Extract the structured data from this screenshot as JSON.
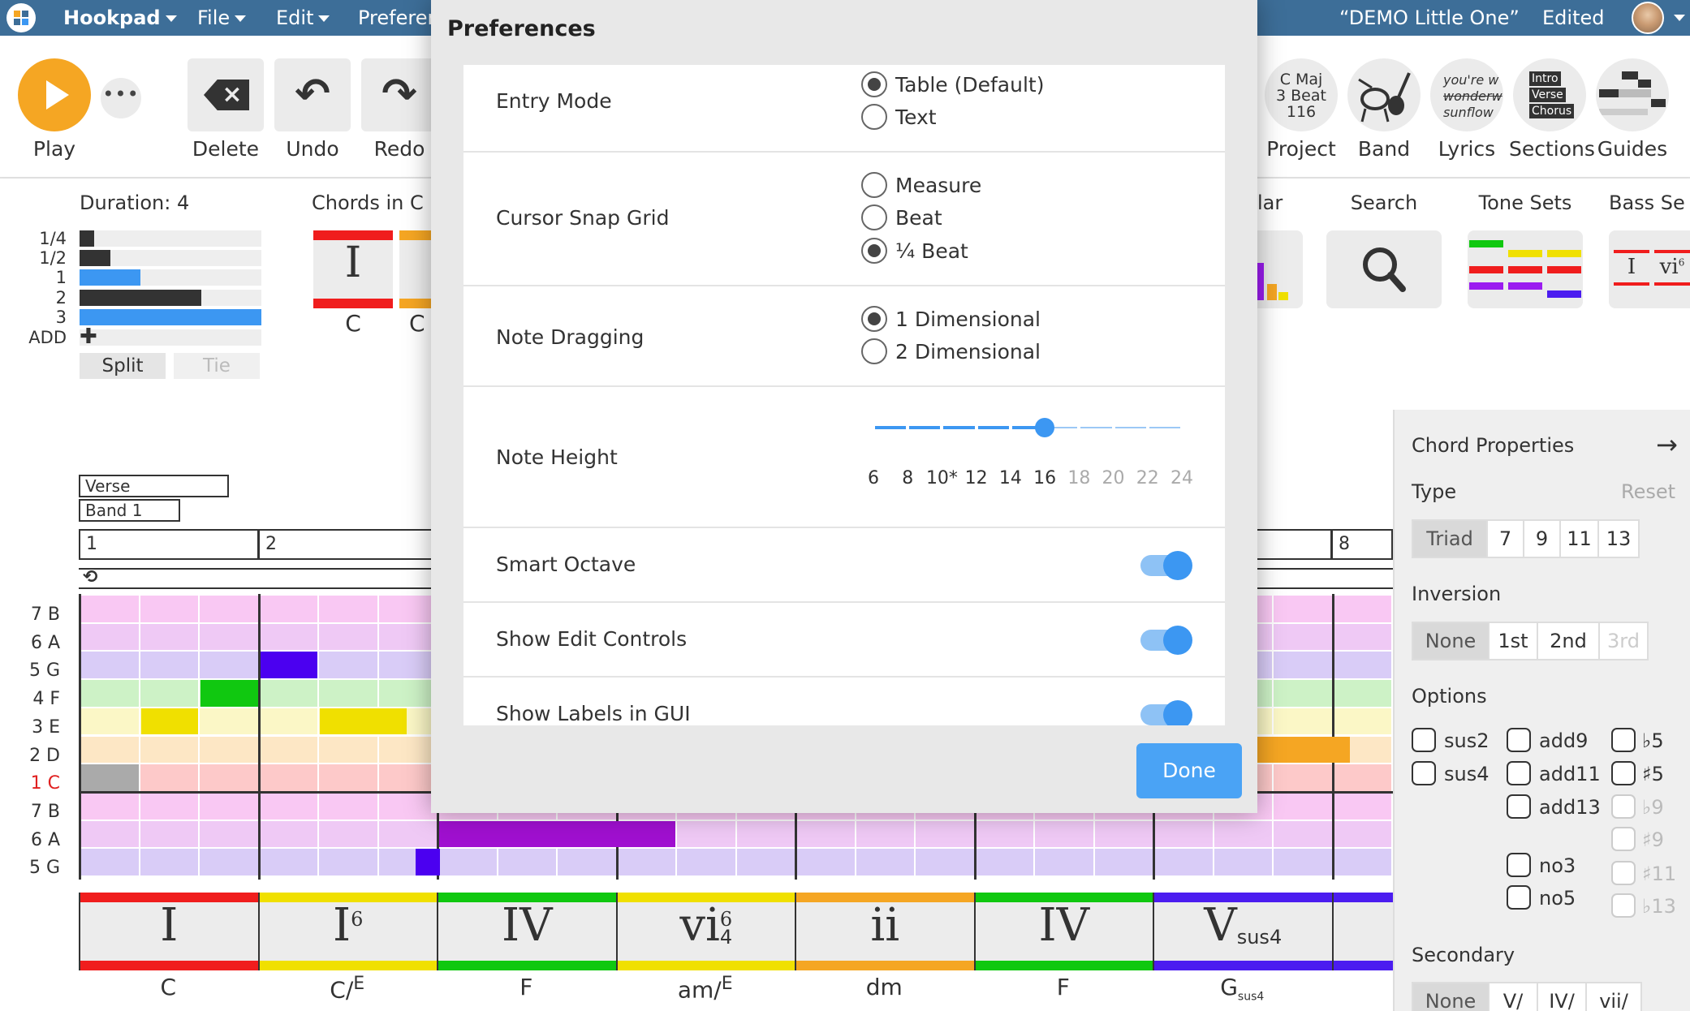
{
  "topbar": {
    "app_name": "Hookpad",
    "menu_file": "File",
    "menu_edit": "Edit",
    "menu_prefs": "Preferences",
    "doc_title": "“DEMO Little One”",
    "status": "Edited"
  },
  "toolbar": {
    "play": "Play",
    "delete": "Delete",
    "undo": "Undo",
    "redo": "Redo",
    "project": "Project",
    "band": "Band",
    "lyrics": "Lyrics",
    "sections": "Sections",
    "guides": "Guides",
    "project_key": "C Maj",
    "project_meter": "3 Beat",
    "project_tempo": "116",
    "lyrics_line1": "you're w",
    "lyrics_line2": "wonderw",
    "lyrics_line3": "sunflow",
    "sections_line1": "Intro",
    "sections_line2": "Verse",
    "sections_line3": "Chorus"
  },
  "widgets": {
    "duration_title": "Duration: 4",
    "durations": [
      "1/4",
      "1/2",
      "1",
      "2",
      "3",
      "ADD"
    ],
    "split": "Split",
    "tie": "Tie",
    "chords_in": "Chords in C",
    "chords_first": "I",
    "chords_first_name": "C",
    "chords_second_name": "C",
    "partial_label": "lar",
    "search": "Search",
    "tone_sets": "Tone Sets",
    "bass_sets": "Bass Se",
    "bass_num1": "I",
    "bass_num2": "vi",
    "bass_num2_sup": "6"
  },
  "sections": {
    "section_label": "Verse",
    "band_label": "Band 1",
    "measures": [
      "1",
      "2",
      "8"
    ]
  },
  "notes": [
    "7 B",
    "6 A",
    "5 G",
    "4 F",
    "3 E",
    "2 D",
    "1 C",
    "7 B",
    "6 A",
    "5 G"
  ],
  "chords": [
    {
      "num": "I",
      "sup": "",
      "sub": "",
      "name": "C",
      "name_sup": "",
      "name_sub": "",
      "color": "#f01d1d"
    },
    {
      "num": "I",
      "sup": "6",
      "sub": "",
      "name": "C/",
      "name_sup": "E",
      "name_sub": "",
      "color": "#f0e000"
    },
    {
      "num": "IV",
      "sup": "",
      "sub": "",
      "name": "F",
      "name_sup": "",
      "name_sub": "",
      "color": "#10c810"
    },
    {
      "num": "vi",
      "sup": "6",
      "sub": "4",
      "name": "am/",
      "name_sup": "E",
      "name_sub": "",
      "color": "#f0e000"
    },
    {
      "num": "ii",
      "sup": "",
      "sub": "",
      "name": "dm",
      "name_sup": "",
      "name_sub": "",
      "color": "#f5a623"
    },
    {
      "num": "IV",
      "sup": "",
      "sub": "",
      "name": "F",
      "name_sup": "",
      "name_sub": "",
      "color": "#10c810"
    },
    {
      "num": "V",
      "sup": "",
      "sub": "sus4",
      "name": "G",
      "name_sup": "",
      "name_sub": "sus4",
      "color": "#4b1cf0"
    }
  ],
  "modal": {
    "title": "Preferences",
    "entry_mode": {
      "label": "Entry Mode",
      "options": [
        "Table (Default)",
        "Text"
      ],
      "selected": 0
    },
    "cursor_snap": {
      "label": "Cursor Snap Grid",
      "options": [
        "Measure",
        "Beat",
        "¼ Beat"
      ],
      "selected": 2
    },
    "note_dragging": {
      "label": "Note Dragging",
      "options": [
        "1 Dimensional",
        "2 Dimensional"
      ],
      "selected": 0
    },
    "note_height": {
      "label": "Note Height",
      "ticks": [
        "6",
        "8",
        "10*",
        "12",
        "14",
        "16",
        "18",
        "20",
        "22",
        "24"
      ],
      "value": 16
    },
    "smart_octave": {
      "label": "Smart Octave",
      "on": true
    },
    "show_edit_controls": {
      "label": "Show Edit Controls",
      "on": true
    },
    "show_labels": {
      "label": "Show Labels in GUI",
      "on": true
    },
    "done": "Done"
  },
  "chord_props": {
    "title": "Chord Properties",
    "type_label": "Type",
    "reset": "Reset",
    "types": [
      "Triad",
      "7",
      "9",
      "11",
      "13"
    ],
    "inversion_label": "Inversion",
    "inversions": [
      "None",
      "1st",
      "2nd",
      "3rd"
    ],
    "options_label": "Options",
    "opts_col1": [
      "sus2",
      "sus4"
    ],
    "opts_col2": [
      "add9",
      "add11",
      "add13",
      "no3",
      "no5"
    ],
    "opts_col3": [
      "♭5",
      "♯5",
      "♭9",
      "♯9",
      "♯11",
      "♭13"
    ],
    "secondary_label": "Secondary",
    "secondaries": [
      "None",
      "V/",
      "IV/",
      "vii/"
    ]
  }
}
